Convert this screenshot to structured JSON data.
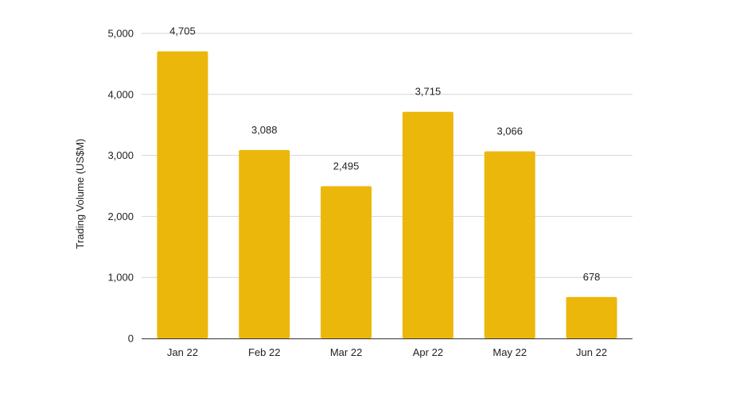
{
  "chart_data": {
    "type": "bar",
    "title": "",
    "xlabel": "",
    "ylabel": "Trading Volume (US$M)",
    "categories": [
      "Jan 22",
      "Feb 22",
      "Mar 22",
      "Apr 22",
      "May 22",
      "Jun 22"
    ],
    "values": [
      4705,
      3088,
      2495,
      3715,
      3066,
      678
    ],
    "data_labels": [
      "4,705",
      "3,088",
      "2,495",
      "3,715",
      "3,066",
      "678"
    ],
    "ylim": [
      0,
      5000
    ],
    "yticks": [
      0,
      1000,
      2000,
      3000,
      4000,
      5000
    ],
    "ytick_labels": [
      "0",
      "1,000",
      "2,000",
      "3,000",
      "4,000",
      "5,000"
    ],
    "grid": true,
    "legend": "none",
    "bar_color": "#ebb70b"
  }
}
